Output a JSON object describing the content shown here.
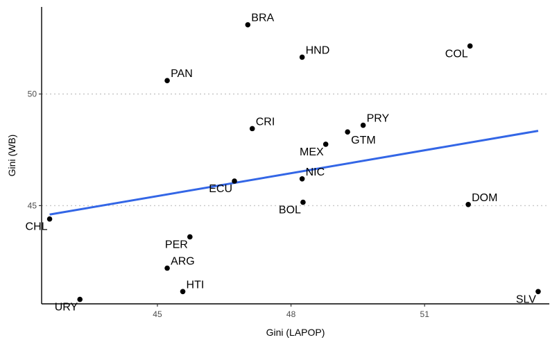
{
  "chart_data": {
    "type": "scatter",
    "xlabel": "Gini (LAPOP)",
    "ylabel": "Gini (WB)",
    "xlim": [
      42.4,
      53.8
    ],
    "ylim": [
      40.6,
      53.9
    ],
    "xticks": [
      45,
      48,
      51
    ],
    "yticks": [
      45,
      50
    ],
    "grid": "horizontal-dotted",
    "colors": {
      "point": "#000000",
      "fit_line": "#3366e6",
      "grid": "#c8c8c8"
    },
    "points": [
      {
        "label": "BRA",
        "x": 47.03,
        "y": 53.1,
        "label_pos": "right-up"
      },
      {
        "label": "HND",
        "x": 48.25,
        "y": 51.65,
        "label_pos": "right-up"
      },
      {
        "label": "COL",
        "x": 52.02,
        "y": 52.15,
        "label_pos": "left-down"
      },
      {
        "label": "PAN",
        "x": 45.22,
        "y": 50.6,
        "label_pos": "right-up"
      },
      {
        "label": "CRI",
        "x": 47.13,
        "y": 48.45,
        "label_pos": "right-up"
      },
      {
        "label": "PRY",
        "x": 49.62,
        "y": 48.6,
        "label_pos": "right-up"
      },
      {
        "label": "GTM",
        "x": 49.27,
        "y": 48.3,
        "label_pos": "right-down"
      },
      {
        "label": "MEX",
        "x": 48.78,
        "y": 47.75,
        "label_pos": "left-down"
      },
      {
        "label": "NIC",
        "x": 48.25,
        "y": 46.2,
        "label_pos": "right-up"
      },
      {
        "label": "ECU",
        "x": 46.73,
        "y": 46.1,
        "label_pos": "left-down"
      },
      {
        "label": "BOL",
        "x": 48.27,
        "y": 45.15,
        "label_pos": "left-down"
      },
      {
        "label": "DOM",
        "x": 51.98,
        "y": 45.05,
        "label_pos": "right-up"
      },
      {
        "label": "CHL",
        "x": 42.58,
        "y": 44.4,
        "label_pos": "left-down"
      },
      {
        "label": "PER",
        "x": 45.73,
        "y": 43.6,
        "label_pos": "left-down"
      },
      {
        "label": "ARG",
        "x": 45.22,
        "y": 42.2,
        "label_pos": "right-up"
      },
      {
        "label": "HTI",
        "x": 45.57,
        "y": 41.15,
        "label_pos": "right-up"
      },
      {
        "label": "URY",
        "x": 43.26,
        "y": 40.8,
        "label_pos": "left-down"
      },
      {
        "label": "SLV",
        "x": 53.55,
        "y": 41.15,
        "label_pos": "left-down"
      }
    ],
    "fit_line": {
      "x": [
        42.58,
        53.55
      ],
      "y": [
        44.6,
        48.35
      ]
    }
  }
}
